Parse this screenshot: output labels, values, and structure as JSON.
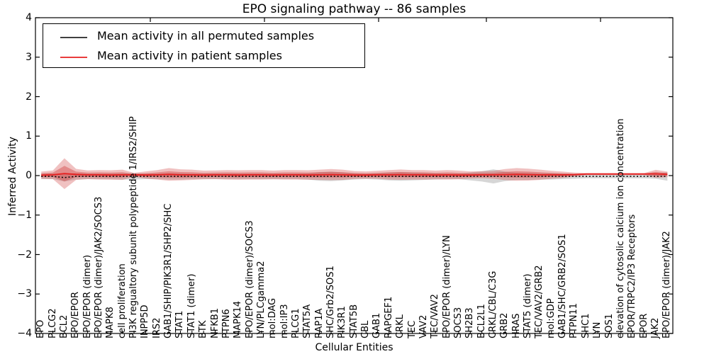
{
  "title": "EPO signaling pathway -- 86 samples",
  "legend": {
    "entries": [
      {
        "label": "Mean activity in all permuted samples",
        "color": "#000000"
      },
      {
        "label": "Mean activity in patient samples",
        "color": "#e62020"
      }
    ]
  },
  "axes": {
    "ylabel": "Inferred Activity",
    "xlabel": "Cellular Entities",
    "ytick_labels": [
      "4",
      "3",
      "2",
      "1",
      "0",
      "−1",
      "−2",
      "−3",
      "−4"
    ],
    "ytick_values": [
      4,
      3,
      2,
      1,
      0,
      -1,
      -2,
      -3,
      -4
    ]
  },
  "chart_data": {
    "type": "line",
    "title": "EPO signaling pathway -- 86 samples",
    "xlabel": "Cellular Entities",
    "ylabel": "Inferred Activity",
    "ylim": [
      -4,
      4
    ],
    "grid": false,
    "legend_position": "upper left",
    "categories": [
      "EPO",
      "PLCG2",
      "BCL2",
      "EPO/EPOR",
      "EPO/EPOR (dimer)",
      "EPO/EPOR (dimer)/JAK2/SOCS3",
      "MAPK8",
      "cell proliferation",
      "PI3K regualtory subunit polypeptide 1/IRS2/SHIP",
      "INPP5D",
      "IRS2",
      "GAB1/SHIP/PIK3R1/SHP2/SHC",
      "STAT1",
      "STAT1 (dimer)",
      "BTK",
      "NFKB1",
      "PTPN6",
      "MAPK14",
      "EPO/EPOR (dimer)/SOCS3",
      "LYN/PLCgamma2",
      "mol:DAG",
      "mol:IP3",
      "PLCG1",
      "STAT5A",
      "RAP1A",
      "SHC/Grb2/SOS1",
      "PIK3R1",
      "STAT5B",
      "CBL",
      "GAB1",
      "RAPGEF1",
      "CRKL",
      "TEC",
      "VAV2",
      "TEC/VAV2",
      "EPO/EPOR (dimer)/LYN",
      "SOCS3",
      "SH2B3",
      "BCL2L1",
      "CRKL/CBL/C3G",
      "GRB2",
      "HRAS",
      "STAT5 (dimer)",
      "TEC/VAV2/GRB2",
      "mol:GDP",
      "GAB1/SHC/GRB2/SOS1",
      "PTPN11",
      "SHC1",
      "LYN",
      "SOS1",
      "elevation of cytosolic calcium ion concentration",
      "EPOR/TRPC2/IP3 Receptors",
      "EPOR",
      "JAK2",
      "EPO/EPOR (dimer)/JAK2"
    ],
    "series": [
      {
        "name": "Mean activity in all permuted samples",
        "color": "#000000",
        "style": "dotted",
        "values": [
          -0.02,
          -0.02,
          -0.05,
          -0.02,
          -0.02,
          -0.02,
          -0.02,
          -0.02,
          -0.02,
          -0.02,
          -0.02,
          -0.02,
          -0.02,
          -0.02,
          -0.02,
          -0.02,
          -0.02,
          -0.02,
          -0.02,
          -0.02,
          -0.02,
          -0.02,
          -0.02,
          -0.02,
          -0.02,
          -0.02,
          -0.02,
          -0.02,
          -0.02,
          -0.02,
          -0.02,
          -0.02,
          -0.02,
          -0.02,
          -0.02,
          -0.02,
          -0.02,
          -0.02,
          -0.02,
          -0.02,
          -0.02,
          -0.02,
          -0.02,
          -0.02,
          -0.02,
          -0.02,
          -0.02,
          -0.02,
          -0.02,
          -0.02,
          -0.02,
          -0.02,
          -0.02,
          -0.02,
          -0.02
        ]
      },
      {
        "name": "Mean activity in patient samples",
        "color": "#e62020",
        "style": "solid",
        "values": [
          0.01,
          0.02,
          0.05,
          0.03,
          0.02,
          0.02,
          0.015,
          0.02,
          0.02,
          0.015,
          0.02,
          0.03,
          0.02,
          0.02,
          0.015,
          0.02,
          0.02,
          0.015,
          0.02,
          0.02,
          0.015,
          0.02,
          0.02,
          0.015,
          0.02,
          0.025,
          0.02,
          0.015,
          0.015,
          0.02,
          0.02,
          0.025,
          0.02,
          0.02,
          0.015,
          0.02,
          0.015,
          0.015,
          0.02,
          0.02,
          0.025,
          0.03,
          0.025,
          0.02,
          0.02,
          0.02,
          0.025,
          0.04,
          0.04,
          0.04,
          0.04,
          0.04,
          0.04,
          0.045,
          0.03
        ]
      }
    ],
    "bands": [
      {
        "name": "permuted-samples-spread",
        "color": "#999999",
        "opacity": 0.4,
        "center_series": 0,
        "scale": 1,
        "half_widths": [
          0.07,
          0.07,
          0.1,
          0.08,
          0.07,
          0.07,
          0.07,
          0.08,
          0.08,
          0.07,
          0.07,
          0.08,
          0.08,
          0.07,
          0.07,
          0.07,
          0.07,
          0.07,
          0.07,
          0.07,
          0.07,
          0.07,
          0.07,
          0.08,
          0.11,
          0.12,
          0.1,
          0.08,
          0.07,
          0.08,
          0.1,
          0.11,
          0.1,
          0.09,
          0.08,
          0.07,
          0.07,
          0.1,
          0.13,
          0.18,
          0.12,
          0.09,
          0.09,
          0.08,
          0.08,
          0.07,
          0.06,
          0.05,
          0.05,
          0.05,
          0.05,
          0.05,
          0.05,
          0.06,
          0.11
        ]
      },
      {
        "name": "patient-samples-spread-outer",
        "color": "#cc3333",
        "opacity": 0.3,
        "center_series": 1,
        "scale": 1,
        "half_widths": [
          0.09,
          0.11,
          0.39,
          0.14,
          0.11,
          0.12,
          0.12,
          0.13,
          0.05,
          0.09,
          0.12,
          0.16,
          0.14,
          0.13,
          0.11,
          0.11,
          0.12,
          0.12,
          0.12,
          0.12,
          0.11,
          0.12,
          0.12,
          0.12,
          0.13,
          0.14,
          0.13,
          0.1,
          0.09,
          0.1,
          0.12,
          0.13,
          0.12,
          0.12,
          0.11,
          0.12,
          0.11,
          0.09,
          0.09,
          0.1,
          0.14,
          0.16,
          0.15,
          0.13,
          0.1,
          0.08,
          0.05,
          0.025,
          0.025,
          0.025,
          0.025,
          0.025,
          0.025,
          0.1,
          0.07
        ]
      },
      {
        "name": "patient-samples-spread-inner",
        "color": "#cc3333",
        "opacity": 0.38,
        "center_series": 1,
        "scale": 0.5,
        "half_widths": [
          0.09,
          0.11,
          0.39,
          0.14,
          0.11,
          0.12,
          0.12,
          0.13,
          0.05,
          0.09,
          0.12,
          0.16,
          0.14,
          0.13,
          0.11,
          0.11,
          0.12,
          0.12,
          0.12,
          0.12,
          0.11,
          0.12,
          0.12,
          0.12,
          0.13,
          0.14,
          0.13,
          0.1,
          0.09,
          0.1,
          0.12,
          0.13,
          0.12,
          0.12,
          0.11,
          0.12,
          0.11,
          0.09,
          0.09,
          0.1,
          0.14,
          0.16,
          0.15,
          0.13,
          0.1,
          0.08,
          0.05,
          0.025,
          0.025,
          0.025,
          0.025,
          0.025,
          0.025,
          0.1,
          0.07
        ]
      }
    ]
  }
}
